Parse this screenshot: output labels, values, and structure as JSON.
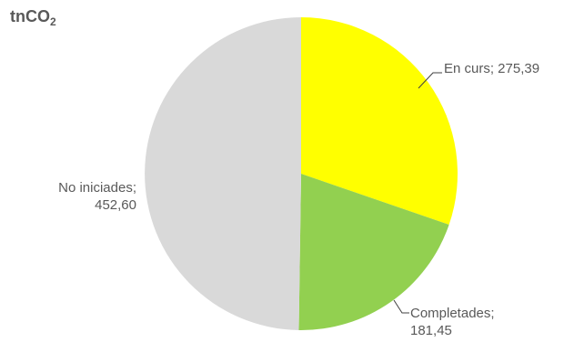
{
  "chart_data": {
    "type": "pie",
    "title_main": "tnCO",
    "title_sub": "2",
    "slices": [
      {
        "name": "En curs",
        "value": 275.39,
        "label_line1": "En curs; 275,39",
        "label_line2": "",
        "color": "#FFFF00"
      },
      {
        "name": "Completades",
        "value": 181.45,
        "label_line1": "Completades;",
        "label_line2": "181,45",
        "color": "#92D050"
      },
      {
        "name": "No iniciades",
        "value": 452.6,
        "label_line1": "No iniciades;",
        "label_line2": "452,60",
        "color": "#D9D9D9"
      }
    ],
    "start_angle": "12 o'clock",
    "direction": "clockwise",
    "legend": "none"
  }
}
